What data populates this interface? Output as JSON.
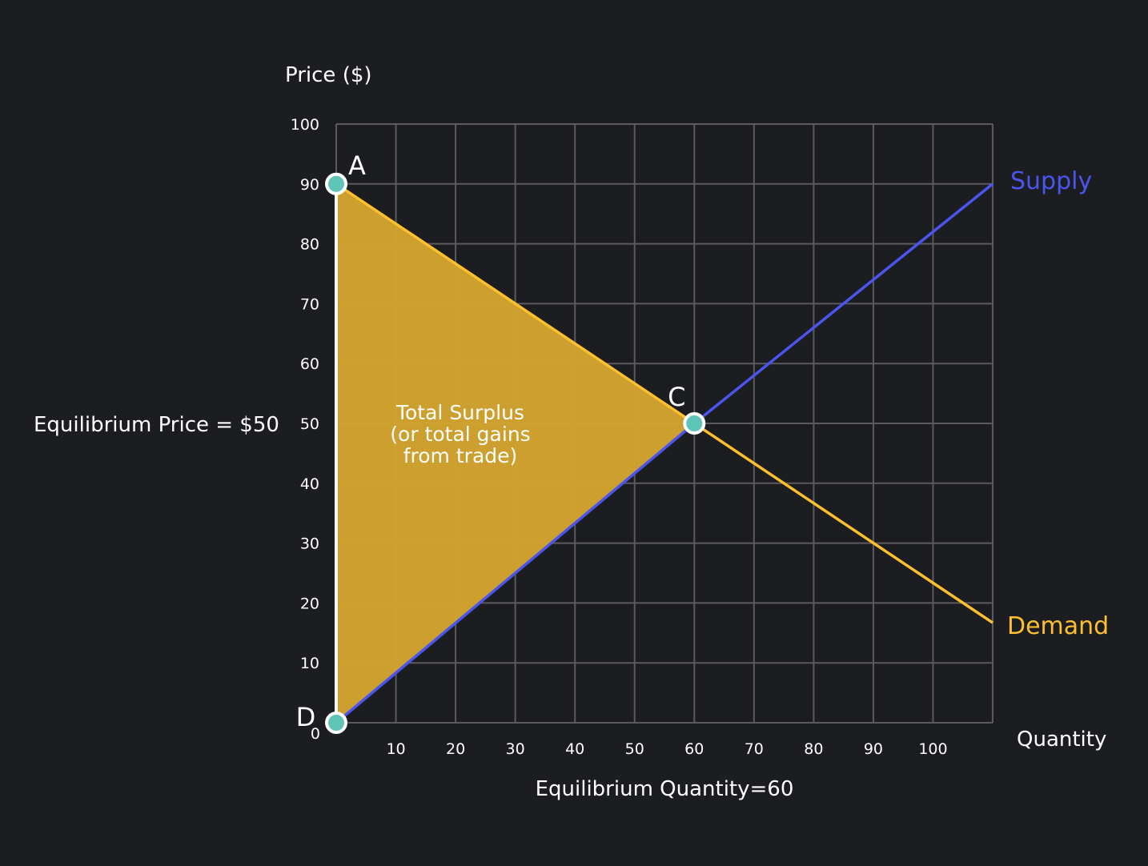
{
  "chart_data": {
    "type": "line",
    "ylabel": "Price ($)",
    "xlabel": "Quantity",
    "xlim": [
      0,
      110
    ],
    "ylim": [
      0,
      100
    ],
    "grid": true,
    "xticks": [
      10,
      20,
      30,
      40,
      50,
      60,
      70,
      80,
      90,
      100
    ],
    "yticks": [
      0,
      10,
      20,
      30,
      40,
      50,
      60,
      70,
      80,
      90,
      100
    ],
    "series": [
      {
        "name": "Supply",
        "color": "#4a55f0",
        "x": [
          0,
          60,
          110
        ],
        "y": [
          0,
          50,
          90
        ]
      },
      {
        "name": "Demand",
        "color": "#fdbf2d",
        "x": [
          0,
          60,
          110
        ],
        "y": [
          90,
          50,
          16.7
        ]
      }
    ],
    "shaded_region": {
      "label_lines": [
        "Total Surplus",
        "(or total gains",
        "from trade)"
      ],
      "color": "#d3a32e",
      "points": [
        [
          0,
          90
        ],
        [
          60,
          50
        ],
        [
          0,
          0
        ]
      ]
    },
    "points": [
      {
        "label": "A",
        "x": 0,
        "y": 90
      },
      {
        "label": "C",
        "x": 60,
        "y": 50
      },
      {
        "label": "D",
        "x": 0,
        "y": 0
      }
    ],
    "annotations": {
      "equilibrium_price": "Equilibrium Price = $50",
      "equilibrium_quantity": "Equilibrium Quantity=60"
    },
    "point_color": "#5ec4b6",
    "background": "#1c1d21"
  }
}
